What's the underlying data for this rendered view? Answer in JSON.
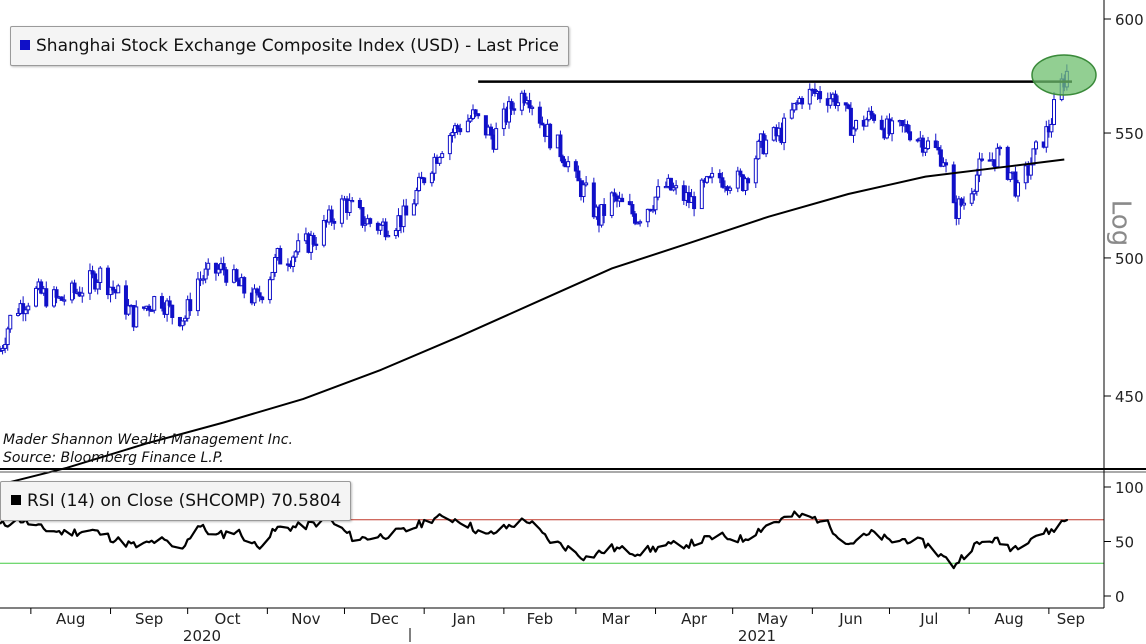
{
  "colors": {
    "candle": "#1010c8",
    "moving_average": "#000000",
    "resistance": "#000000",
    "highlight_fill": "#6dbf6d",
    "highlight_edge": "#3a8a3a",
    "rsi_line": "#000000",
    "rsi_overbought": "#c0392b",
    "rsi_oversold": "#44cc44"
  },
  "price_panel": {
    "legend_label": "Shanghai Stock Exchange Composite Index (USD) - Last Price",
    "scale_label": "Log",
    "y_ticks": [
      "600",
      "550",
      "500",
      "450"
    ],
    "credits": [
      "Mader Shannon Wealth Management Inc.",
      "Source: Bloomberg Finance L.P."
    ]
  },
  "rsi_panel": {
    "legend_label": "RSI (14)  on Close (SHCOMP) 70.5804",
    "y_ticks": [
      "100",
      "50",
      "0"
    ]
  },
  "x_axis": {
    "months": [
      "Aug",
      "Sep",
      "Oct",
      "Nov",
      "Dec",
      "Jan",
      "Feb",
      "Mar",
      "Apr",
      "May",
      "Jun",
      "Jul",
      "Aug",
      "Sep"
    ],
    "years": [
      "2020",
      "2021"
    ]
  },
  "chart_data": [
    {
      "type": "candlestick",
      "title": "Shanghai Stock Exchange Composite Index (USD) - Last Price",
      "y_scale": "log",
      "ylim": [
        420,
        610
      ],
      "x_range": [
        "2020-07-20",
        "2021-09-10"
      ],
      "close_path": [
        [
          "2020-07-20",
          466
        ],
        [
          "2020-07-25",
          480
        ],
        [
          "2020-08-03",
          487
        ],
        [
          "2020-08-12",
          484
        ],
        [
          "2020-08-20",
          488
        ],
        [
          "2020-08-28",
          494
        ],
        [
          "2020-09-04",
          486
        ],
        [
          "2020-09-10",
          478
        ],
        [
          "2020-09-20",
          486
        ],
        [
          "2020-09-25",
          479
        ],
        [
          "2020-09-30",
          478
        ],
        [
          "2020-10-05",
          492
        ],
        [
          "2020-10-15",
          496
        ],
        [
          "2020-10-20",
          490
        ],
        [
          "2020-10-28",
          484
        ],
        [
          "2020-11-05",
          500
        ],
        [
          "2020-11-10",
          501
        ],
        [
          "2020-11-20",
          508
        ],
        [
          "2020-12-01",
          522
        ],
        [
          "2020-12-08",
          515
        ],
        [
          "2020-12-15",
          512
        ],
        [
          "2020-12-25",
          516
        ],
        [
          "2021-01-01",
          532
        ],
        [
          "2021-01-10",
          549
        ],
        [
          "2021-01-20",
          557
        ],
        [
          "2021-01-28",
          548
        ],
        [
          "2021-02-05",
          563
        ],
        [
          "2021-02-10",
          568
        ],
        [
          "2021-02-18",
          550
        ],
        [
          "2021-02-25",
          540
        ],
        [
          "2021-03-01",
          530
        ],
        [
          "2021-03-05",
          525
        ],
        [
          "2021-03-10",
          515
        ],
        [
          "2021-03-15",
          523
        ],
        [
          "2021-03-25",
          516
        ],
        [
          "2021-04-05",
          528
        ],
        [
          "2021-04-15",
          522
        ],
        [
          "2021-04-25",
          532
        ],
        [
          "2021-05-05",
          530
        ],
        [
          "2021-05-12",
          545
        ],
        [
          "2021-05-20",
          550
        ],
        [
          "2021-05-28",
          566
        ],
        [
          "2021-06-03",
          567
        ],
        [
          "2021-06-10",
          565
        ],
        [
          "2021-06-17",
          552
        ],
        [
          "2021-06-25",
          558
        ],
        [
          "2021-07-01",
          550
        ],
        [
          "2021-07-08",
          552
        ],
        [
          "2021-07-15",
          546
        ],
        [
          "2021-07-22",
          540
        ],
        [
          "2021-07-26",
          518
        ],
        [
          "2021-07-30",
          522
        ],
        [
          "2021-08-05",
          535
        ],
        [
          "2021-08-12",
          541
        ],
        [
          "2021-08-18",
          532
        ],
        [
          "2021-08-20",
          525
        ],
        [
          "2021-08-26",
          540
        ],
        [
          "2021-09-01",
          552
        ],
        [
          "2021-09-05",
          568
        ],
        [
          "2021-09-08",
          576
        ]
      ]
    },
    {
      "type": "line",
      "y_scale": "log",
      "points": [
        [
          "2020-07-22",
          421
        ],
        [
          "2020-08-15",
          426
        ],
        [
          "2020-09-15",
          434
        ],
        [
          "2020-10-15",
          441
        ],
        [
          "2020-11-15",
          449
        ],
        [
          "2020-12-15",
          459
        ],
        [
          "2021-01-15",
          471
        ],
        [
          "2021-02-15",
          484
        ],
        [
          "2021-03-15",
          496
        ],
        [
          "2021-04-15",
          506
        ],
        [
          "2021-05-15",
          516
        ],
        [
          "2021-06-15",
          525
        ],
        [
          "2021-07-15",
          532
        ],
        [
          "2021-08-15",
          536
        ],
        [
          "2021-09-07",
          539
        ]
      ]
    },
    {
      "type": "line",
      "annotation": "horizontal resistance line",
      "y": 572,
      "x_start": "2021-01-22",
      "x_end": "2021-09-10"
    },
    {
      "type": "line",
      "title": "RSI (14)  on Close (SHCOMP) 70.5804",
      "ylim": [
        -10,
        110
      ],
      "reference_levels": [
        70,
        30
      ],
      "points": [
        [
          "2020-07-20",
          65
        ],
        [
          "2020-07-28",
          70
        ],
        [
          "2020-08-05",
          62
        ],
        [
          "2020-08-14",
          58
        ],
        [
          "2020-08-25",
          60
        ],
        [
          "2020-09-05",
          50
        ],
        [
          "2020-09-12",
          45
        ],
        [
          "2020-09-20",
          52
        ],
        [
          "2020-09-28",
          42
        ],
        [
          "2020-10-05",
          65
        ],
        [
          "2020-10-12",
          55
        ],
        [
          "2020-10-20",
          60
        ],
        [
          "2020-10-28",
          45
        ],
        [
          "2020-11-05",
          62
        ],
        [
          "2020-11-15",
          64
        ],
        [
          "2020-11-25",
          70
        ],
        [
          "2020-12-05",
          52
        ],
        [
          "2020-12-15",
          55
        ],
        [
          "2020-12-25",
          60
        ],
        [
          "2021-01-05",
          72
        ],
        [
          "2021-01-15",
          70
        ],
        [
          "2021-01-25",
          55
        ],
        [
          "2021-02-05",
          66
        ],
        [
          "2021-02-10",
          70
        ],
        [
          "2021-02-18",
          52
        ],
        [
          "2021-02-25",
          45
        ],
        [
          "2021-03-05",
          35
        ],
        [
          "2021-03-15",
          44
        ],
        [
          "2021-03-25",
          40
        ],
        [
          "2021-04-05",
          46
        ],
        [
          "2021-04-15",
          48
        ],
        [
          "2021-04-25",
          55
        ],
        [
          "2021-05-05",
          52
        ],
        [
          "2021-05-15",
          66
        ],
        [
          "2021-05-25",
          74
        ],
        [
          "2021-06-05",
          70
        ],
        [
          "2021-06-15",
          48
        ],
        [
          "2021-06-25",
          58
        ],
        [
          "2021-07-01",
          50
        ],
        [
          "2021-07-08",
          52
        ],
        [
          "2021-07-15",
          48
        ],
        [
          "2021-07-26",
          28
        ],
        [
          "2021-08-02",
          45
        ],
        [
          "2021-08-10",
          52
        ],
        [
          "2021-08-18",
          44
        ],
        [
          "2021-08-26",
          55
        ],
        [
          "2021-09-02",
          60
        ],
        [
          "2021-09-08",
          70.58
        ]
      ]
    }
  ]
}
